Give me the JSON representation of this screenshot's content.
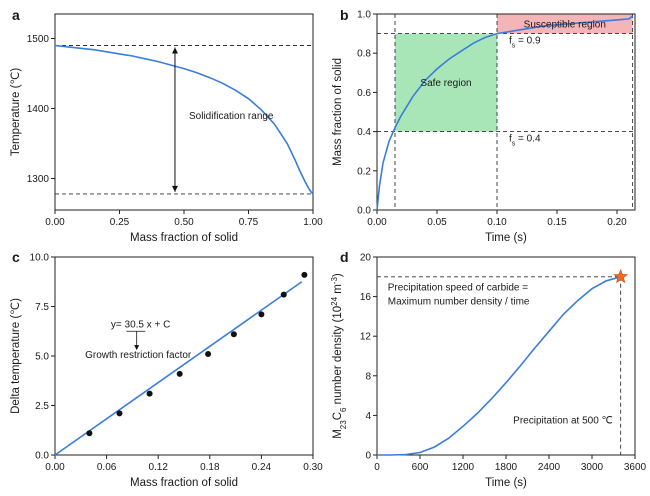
{
  "chart_data": [
    {
      "panel": "a",
      "type": "line",
      "xlabel": "Mass fraction of solid",
      "ylabel": "Temperature (℃)",
      "xlim": [
        0,
        1
      ],
      "ylim": [
        1255,
        1535
      ],
      "xticks": [
        0,
        0.25,
        0.5,
        0.75,
        1
      ],
      "xtick_labels": [
        "0.00",
        "0.25",
        "0.50",
        "0.75",
        "1.00"
      ],
      "yticks": [
        1300,
        1400,
        1500
      ],
      "ytick_labels": [
        "1300",
        "1400",
        "1500"
      ],
      "series": [
        {
          "x": [
            0,
            0.05,
            0.1,
            0.15,
            0.2,
            0.25,
            0.3,
            0.35,
            0.4,
            0.45,
            0.5,
            0.55,
            0.6,
            0.65,
            0.7,
            0.75,
            0.8,
            0.85,
            0.9,
            0.93,
            0.95,
            0.97,
            0.98,
            0.99,
            1.0
          ],
          "y": [
            1490,
            1488,
            1486,
            1484,
            1481,
            1478,
            1475,
            1471,
            1467,
            1462,
            1457,
            1451,
            1444,
            1436,
            1426,
            1414,
            1398,
            1378,
            1350,
            1327,
            1310,
            1295,
            1288,
            1282,
            1278
          ]
        }
      ],
      "hlines": [
        1490,
        1278
      ],
      "annotations": [
        {
          "text": "Solidification range",
          "x": 0.5,
          "y": 1385
        }
      ]
    },
    {
      "panel": "b",
      "type": "line",
      "xlabel": "Time (s)",
      "ylabel": "Mass fraction of solid",
      "xlim": [
        0,
        0.215
      ],
      "ylim": [
        0,
        1.0
      ],
      "xticks": [
        0,
        0.05,
        0.1,
        0.15,
        0.2
      ],
      "xtick_labels": [
        "0.00",
        "0.05",
        "0.10",
        "0.15",
        "0.20"
      ],
      "yticks": [
        0,
        0.2,
        0.4,
        0.6,
        0.8,
        1.0
      ],
      "ytick_labels": [
        "0.0",
        "0.2",
        "0.4",
        "0.6",
        "0.8",
        "1.0"
      ],
      "series": [
        {
          "x": [
            0,
            0.002,
            0.005,
            0.01,
            0.015,
            0.02,
            0.03,
            0.04,
            0.05,
            0.06,
            0.07,
            0.08,
            0.09,
            0.1,
            0.12,
            0.14,
            0.16,
            0.18,
            0.2,
            0.21,
            0.213
          ],
          "y": [
            0,
            0.12,
            0.24,
            0.35,
            0.42,
            0.48,
            0.58,
            0.66,
            0.72,
            0.77,
            0.81,
            0.85,
            0.88,
            0.9,
            0.92,
            0.94,
            0.95,
            0.96,
            0.97,
            0.975,
            0.99
          ]
        }
      ],
      "vlines": [
        0.015,
        0.1,
        0.213
      ],
      "hlines": [
        0.9,
        0.4
      ],
      "regions": [
        {
          "label": "Safe region",
          "x": [
            0.015,
            0.1
          ],
          "y": [
            0.4,
            0.9
          ],
          "color": "#a8e6b8"
        },
        {
          "label": "Susceptible region",
          "x": [
            0.1,
            0.213
          ],
          "y": [
            0.9,
            1.0
          ],
          "color": "#f4b5b9"
        }
      ],
      "annotations": [
        {
          "text": "fs = 0.9",
          "main": "f",
          "sub": "s",
          "rest": " = 0.9",
          "x": 0.11,
          "y": 0.85
        },
        {
          "text": "fs = 0.4",
          "main": "f",
          "sub": "s",
          "rest": " = 0.4",
          "x": 0.11,
          "y": 0.35
        }
      ]
    },
    {
      "panel": "c",
      "type": "scatter",
      "xlabel": "Mass fraction of solid",
      "ylabel": "Delta temperature (℃)",
      "xlim": [
        0,
        0.3
      ],
      "ylim": [
        0,
        10
      ],
      "xticks": [
        0,
        0.06,
        0.12,
        0.18,
        0.24,
        0.3
      ],
      "xtick_labels": [
        "0.00",
        "0.06",
        "0.12",
        "0.18",
        "0.24",
        "0.30"
      ],
      "yticks": [
        0,
        2.5,
        5,
        7.5,
        10
      ],
      "ytick_labels": [
        "0.0",
        "2.5",
        "5.0",
        "7.5",
        "10.0"
      ],
      "points": {
        "x": [
          0.04,
          0.075,
          0.11,
          0.145,
          0.178,
          0.208,
          0.24,
          0.266,
          0.29
        ],
        "y": [
          1.1,
          2.1,
          3.1,
          4.1,
          5.1,
          6.1,
          7.1,
          8.1,
          9.1
        ]
      },
      "fit": {
        "slope": 30.5,
        "x": [
          0,
          0.287
        ],
        "y": [
          0,
          8.75
        ]
      },
      "annotations": [
        {
          "text": "y= 30.5 x + C",
          "x": 0.065,
          "y": 6.45
        },
        {
          "text": "Growth restriction factor",
          "x": 0.035,
          "y": 4.9
        }
      ]
    },
    {
      "panel": "d",
      "type": "line",
      "xlabel": "Time (s)",
      "ylabel": "M23C6 number density (10^24 m^-3)",
      "xlim": [
        0,
        3600
      ],
      "ylim": [
        0,
        20
      ],
      "xticks": [
        0,
        600,
        1200,
        1800,
        2400,
        3000,
        3600
      ],
      "xtick_labels": [
        "0",
        "600",
        "1200",
        "1800",
        "2400",
        "3000",
        "3600"
      ],
      "yticks": [
        0,
        4,
        8,
        12,
        16,
        20
      ],
      "ytick_labels": [
        "0",
        "4",
        "8",
        "12",
        "16",
        "20"
      ],
      "series": [
        {
          "x": [
            0,
            200,
            400,
            600,
            800,
            1000,
            1200,
            1400,
            1600,
            1800,
            2000,
            2200,
            2400,
            2600,
            2800,
            3000,
            3200,
            3400
          ],
          "y": [
            0,
            0,
            0.05,
            0.25,
            0.8,
            1.7,
            2.9,
            4.2,
            5.7,
            7.3,
            9.0,
            10.8,
            12.5,
            14.2,
            15.6,
            16.8,
            17.6,
            18.0
          ]
        }
      ],
      "marker": {
        "x": 3400,
        "y": 18.0,
        "shape": "star",
        "color": "#f26a21"
      },
      "hlines": [
        18.0
      ],
      "vlines": [
        3400
      ],
      "annotations": [
        {
          "text": "Precipitation speed of carbide =",
          "x": 150,
          "y": 16.6
        },
        {
          "text": "Maximum number density / time",
          "x": 150,
          "y": 15.2
        },
        {
          "text": "Precipitation at 500 ℃",
          "x": 1900,
          "y": 3.2
        }
      ]
    }
  ]
}
